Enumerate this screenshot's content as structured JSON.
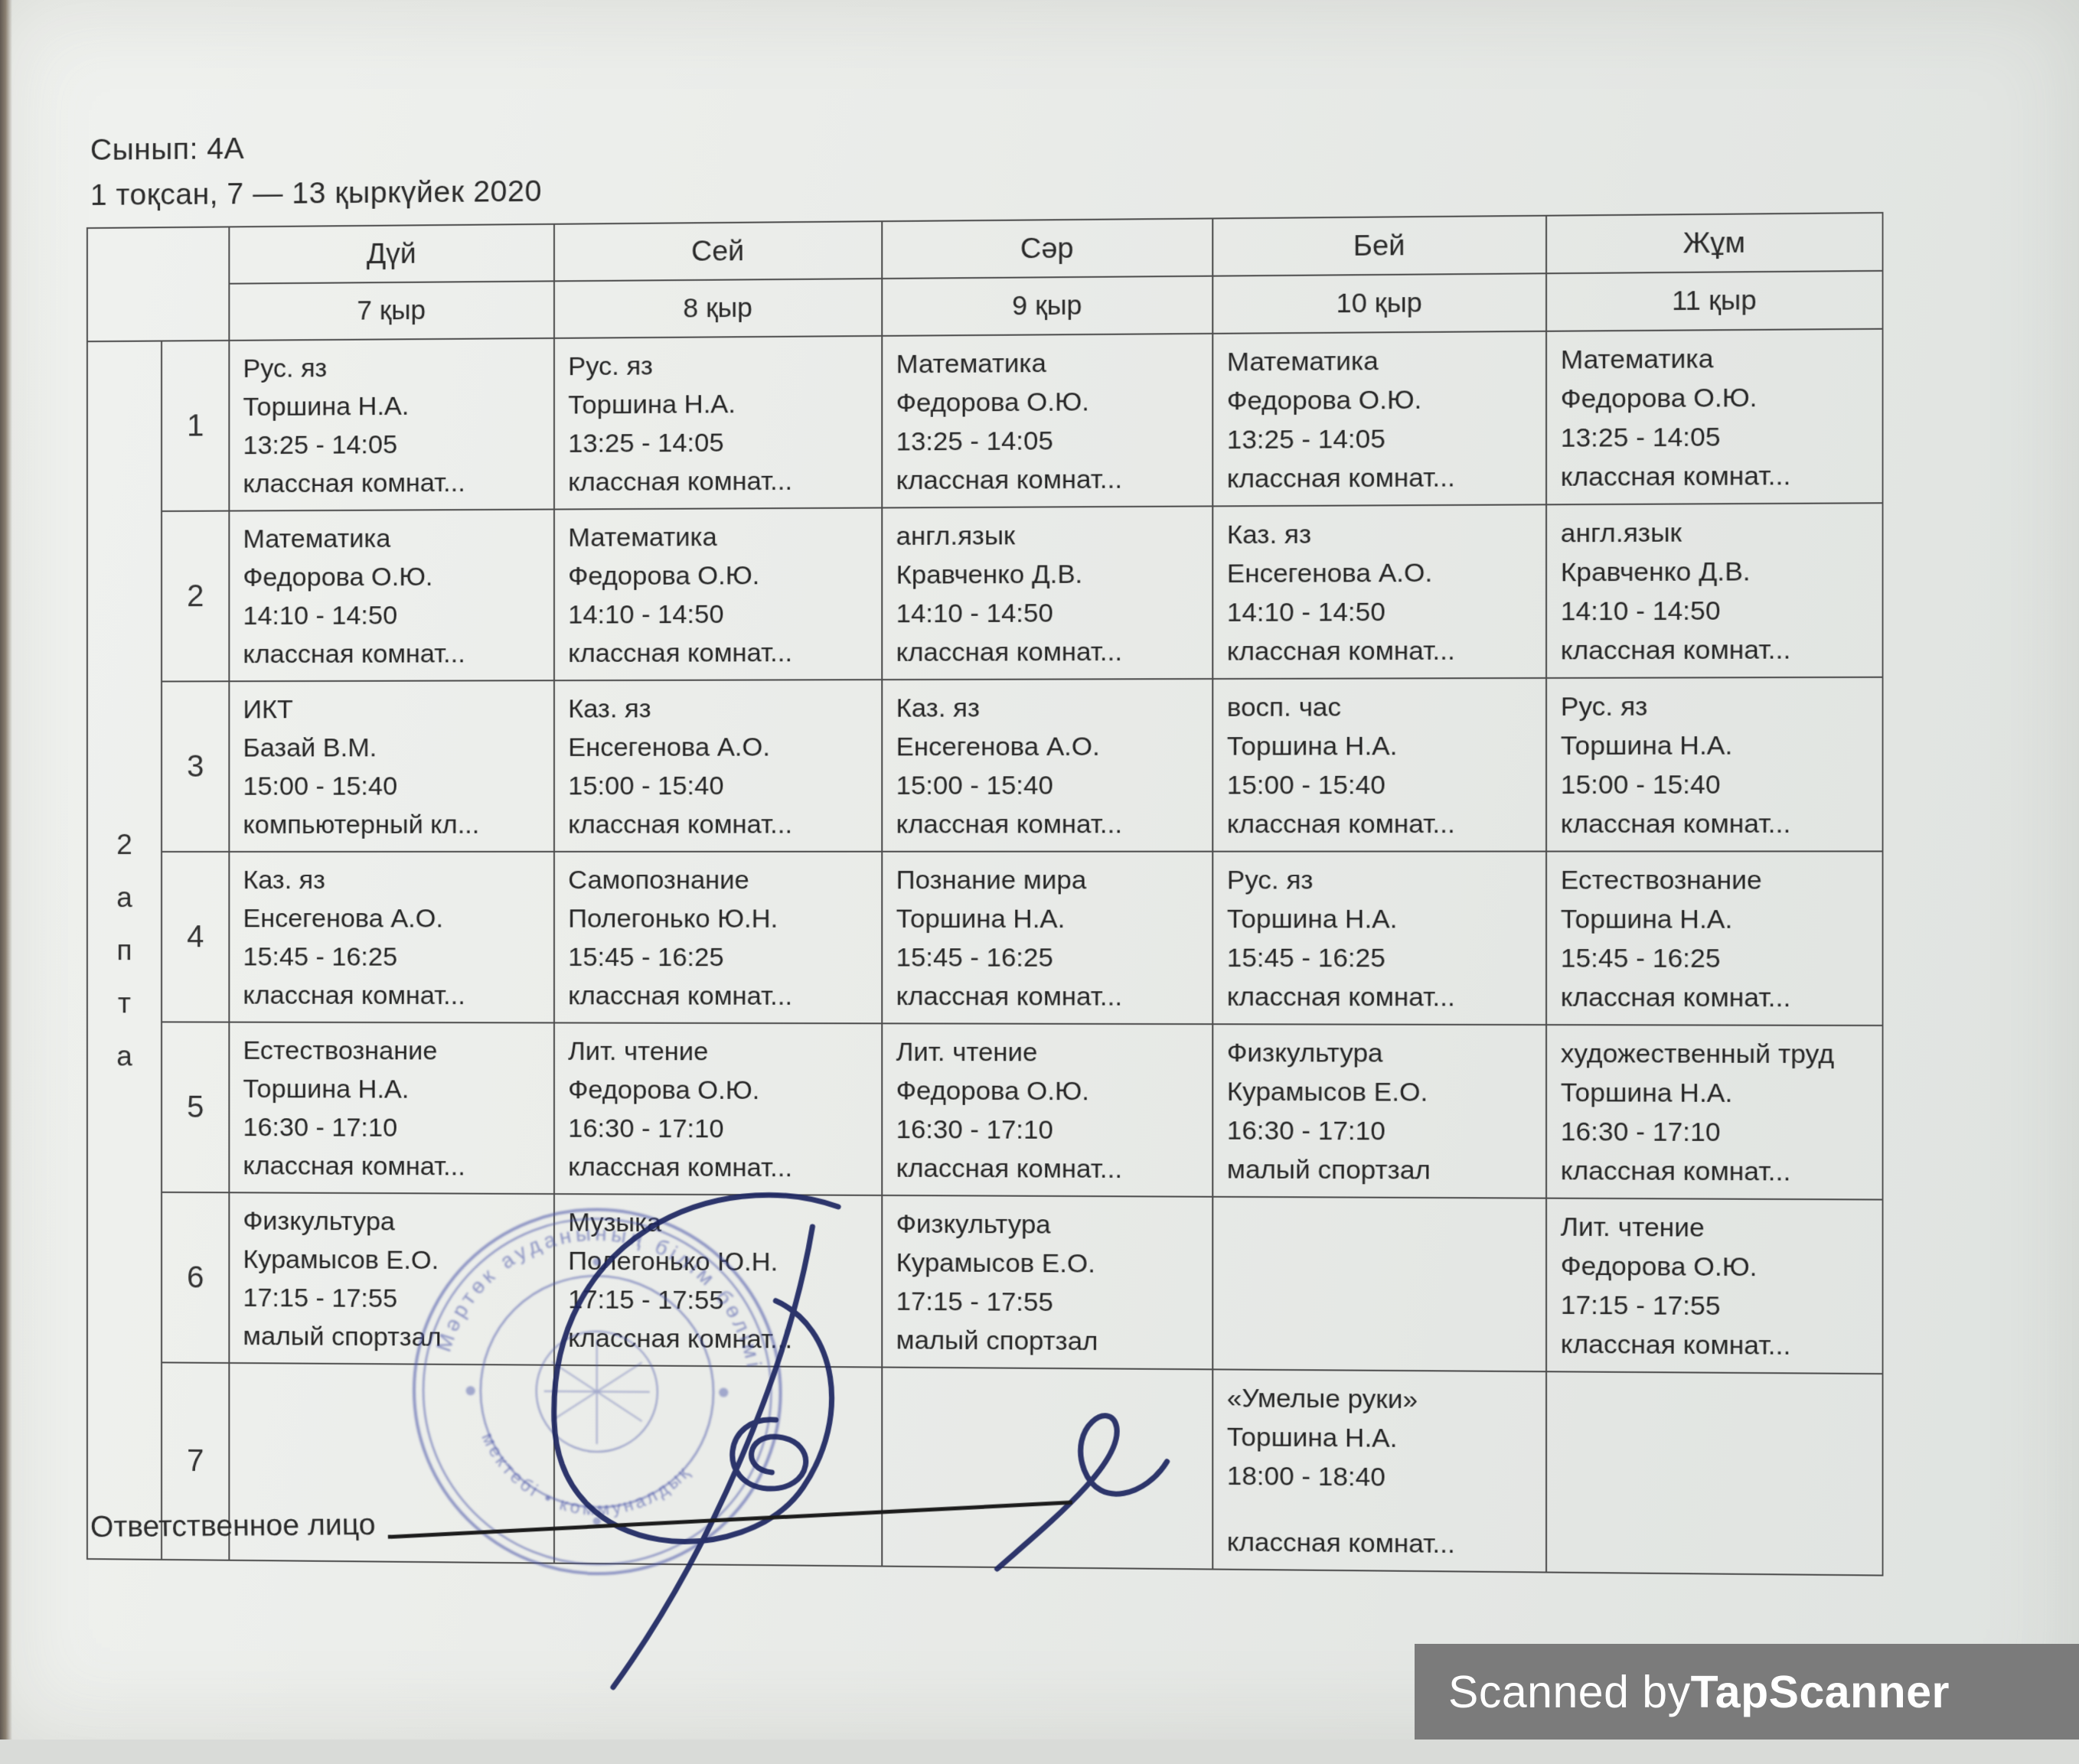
{
  "header": {
    "class_label": "Сынып: 4А",
    "term_label": "1 тоқсан, 7 — 13 қыркүйек 2020"
  },
  "week_label": "2 апта",
  "days": [
    {
      "name": "Дүй",
      "date": "7 қыр"
    },
    {
      "name": "Сей",
      "date": "8 қыр"
    },
    {
      "name": "Сәр",
      "date": "9 қыр"
    },
    {
      "name": "Бей",
      "date": "10 қыр"
    },
    {
      "name": "Жұм",
      "date": "11 қыр"
    }
  ],
  "periods": [
    {
      "num": "1",
      "lessons": [
        {
          "subject": "Рус. яз",
          "teacher": "Торшина Н.А.",
          "time": "13:25 - 14:05",
          "room": "классная комнат..."
        },
        {
          "subject": "Рус. яз",
          "teacher": "Торшина Н.А.",
          "time": "13:25 - 14:05",
          "room": "классная комнат..."
        },
        {
          "subject": "Математика",
          "teacher": "Федорова О.Ю.",
          "time": "13:25 - 14:05",
          "room": "классная комнат..."
        },
        {
          "subject": "Математика",
          "teacher": "Федорова О.Ю.",
          "time": "13:25 - 14:05",
          "room": "классная комнат..."
        },
        {
          "subject": "Математика",
          "teacher": "Федорова О.Ю.",
          "time": "13:25 - 14:05",
          "room": "классная комнат..."
        }
      ]
    },
    {
      "num": "2",
      "lessons": [
        {
          "subject": "Математика",
          "teacher": "Федорова О.Ю.",
          "time": "14:10 - 14:50",
          "room": "классная комнат..."
        },
        {
          "subject": "Математика",
          "teacher": "Федорова О.Ю.",
          "time": "14:10 - 14:50",
          "room": "классная комнат..."
        },
        {
          "subject": "англ.язык",
          "teacher": "Кравченко Д.В.",
          "time": "14:10 - 14:50",
          "room": "классная комнат..."
        },
        {
          "subject": "Каз. яз",
          "teacher": "Енсегенова А.О.",
          "time": "14:10 - 14:50",
          "room": "классная комнат..."
        },
        {
          "subject": "англ.язык",
          "teacher": "Кравченко Д.В.",
          "time": "14:10 - 14:50",
          "room": "классная комнат..."
        }
      ]
    },
    {
      "num": "3",
      "lessons": [
        {
          "subject": "ИКТ",
          "teacher": "Базай В.М.",
          "time": "15:00 - 15:40",
          "room": "компьютерный кл..."
        },
        {
          "subject": "Каз. яз",
          "teacher": "Енсегенова А.О.",
          "time": "15:00 - 15:40",
          "room": "классная комнат..."
        },
        {
          "subject": "Каз. яз",
          "teacher": "Енсегенова А.О.",
          "time": "15:00 - 15:40",
          "room": "классная комнат..."
        },
        {
          "subject": "восп. час",
          "teacher": "Торшина Н.А.",
          "time": "15:00 - 15:40",
          "room": "классная комнат..."
        },
        {
          "subject": "Рус. яз",
          "teacher": "Торшина Н.А.",
          "time": "15:00 - 15:40",
          "room": "классная комнат..."
        }
      ]
    },
    {
      "num": "4",
      "lessons": [
        {
          "subject": "Каз. яз",
          "teacher": "Енсегенова А.О.",
          "time": "15:45 - 16:25",
          "room": "классная комнат..."
        },
        {
          "subject": "Самопознание",
          "teacher": "Полегонько Ю.Н.",
          "time": "15:45 - 16:25",
          "room": "классная комнат..."
        },
        {
          "subject": "Познание мира",
          "teacher": "Торшина Н.А.",
          "time": "15:45 - 16:25",
          "room": "классная комнат..."
        },
        {
          "subject": "Рус. яз",
          "teacher": "Торшина Н.А.",
          "time": "15:45 - 16:25",
          "room": "классная комнат..."
        },
        {
          "subject": "Естествознание",
          "teacher": "Торшина Н.А.",
          "time": "15:45 - 16:25",
          "room": "классная комнат..."
        }
      ]
    },
    {
      "num": "5",
      "lessons": [
        {
          "subject": "Естествознание",
          "teacher": "Торшина Н.А.",
          "time": "16:30 - 17:10",
          "room": "классная комнат..."
        },
        {
          "subject": "Лит. чтение",
          "teacher": "Федорова О.Ю.",
          "time": "16:30 - 17:10",
          "room": "классная комнат..."
        },
        {
          "subject": "Лит. чтение",
          "teacher": "Федорова О.Ю.",
          "time": "16:30 - 17:10",
          "room": "классная комнат..."
        },
        {
          "subject": "Физкультура",
          "teacher": "Курамысов Е.О.",
          "time": "16:30 - 17:10",
          "room": "малый спортзал"
        },
        {
          "subject": "художественный труд",
          "teacher": "Торшина Н.А.",
          "time": "16:30 - 17:10",
          "room": "классная комнат..."
        }
      ]
    },
    {
      "num": "6",
      "lessons": [
        {
          "subject": "Физкультура",
          "teacher": "Курамысов Е.О.",
          "time": "17:15 - 17:55",
          "room": "малый спортзал"
        },
        {
          "subject": "Музыка",
          "teacher": "Полегонько Ю.Н.",
          "time": "17:15 - 17:55",
          "room": "классная комнат..."
        },
        {
          "subject": "Физкультура",
          "teacher": "Курамысов Е.О.",
          "time": "17:15 - 17:55",
          "room": "малый спортзал"
        },
        null,
        {
          "subject": "Лит. чтение",
          "teacher": "Федорова О.Ю.",
          "time": "17:15 - 17:55",
          "room": "классная комнат..."
        }
      ]
    },
    {
      "num": "7",
      "lessons": [
        null,
        null,
        null,
        {
          "subject": "«Умелые руки»",
          "teacher": "Торшина Н.А.",
          "time": "18:00 - 18:40",
          "room": "классная комнат..."
        },
        null
      ]
    }
  ],
  "footer": {
    "responsible_label": "Ответственное лицо"
  },
  "stamp": {
    "fragments": [
      "Мәртөк ауданының білім бөлімі",
      "мектебі • коммуналдық"
    ]
  },
  "watermark": {
    "prefix": "Scanned by ",
    "brand": "TapScanner"
  },
  "colors": {
    "stamp_blue": "#4a55a8",
    "ink_blue": "#1c2560",
    "watermark_bg": "#7b7b7b",
    "paper": "#eaece9"
  }
}
